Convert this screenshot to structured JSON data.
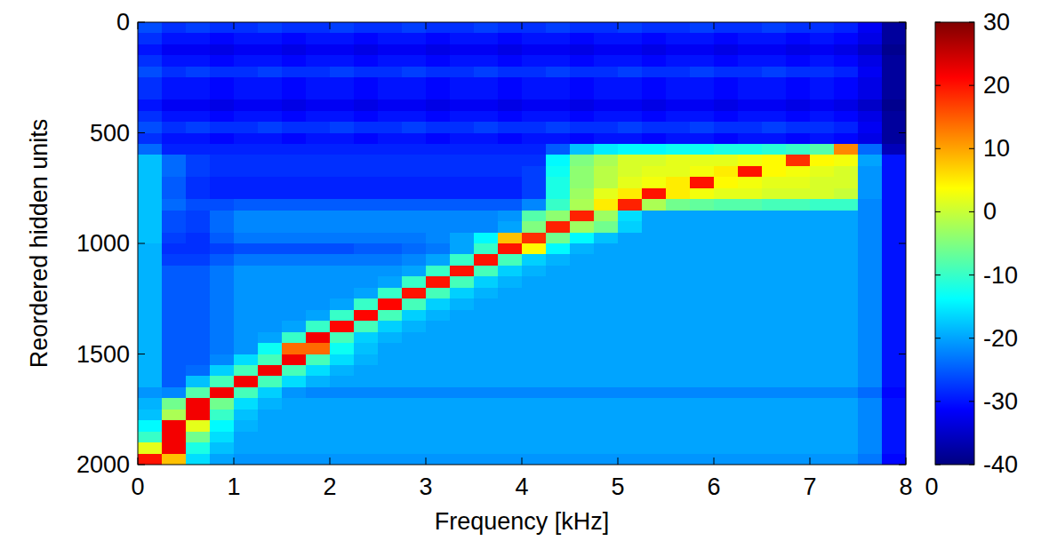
{
  "chart_data": {
    "type": "heatmap",
    "xlabel": "Frequency [kHz]",
    "ylabel": "Reordered hidden units",
    "xlim": [
      0,
      8
    ],
    "xticks": [
      0,
      1,
      2,
      3,
      4,
      5,
      6,
      7,
      8
    ],
    "ylim": [
      2000,
      0
    ],
    "yticks": [
      0,
      500,
      1000,
      1500,
      2000
    ],
    "xbins": [
      0,
      0.25,
      0.5,
      0.75,
      1,
      1.25,
      1.5,
      1.75,
      2,
      2.25,
      2.5,
      2.75,
      3,
      3.25,
      3.5,
      3.75,
      4,
      4.25,
      4.5,
      4.75,
      5,
      5.25,
      5.5,
      5.75,
      6,
      6.25,
      6.5,
      6.75,
      7,
      7.25,
      7.5,
      7.75,
      8
    ],
    "ybins": [
      0,
      50,
      100,
      150,
      200,
      250,
      300,
      350,
      400,
      450,
      500,
      550,
      600,
      650,
      700,
      750,
      800,
      850,
      900,
      950,
      1000,
      1050,
      1100,
      1150,
      1200,
      1250,
      1300,
      1350,
      1400,
      1450,
      1500,
      1550,
      1600,
      1650,
      1700,
      1750,
      1800,
      1850,
      1900,
      1950,
      2000
    ],
    "color_range": [
      -40,
      30
    ],
    "color_ticks": [
      -40,
      -30,
      -20,
      -10,
      0,
      10,
      20,
      30
    ],
    "colorbar_xticks": [
      0
    ],
    "cells": [
      [
        -26,
        -28,
        -27,
        -28,
        -28,
        -27,
        -28,
        -28,
        -27,
        -28,
        -28,
        -27,
        -28,
        -28,
        -27,
        -28,
        -28,
        -27,
        -28,
        -28,
        -27,
        -28,
        -28,
        -27,
        -28,
        -28,
        -27,
        -28,
        -28,
        -29,
        -32,
        -38
      ],
      [
        -28,
        -30,
        -30,
        -31,
        -30,
        -30,
        -31,
        -30,
        -30,
        -31,
        -30,
        -30,
        -31,
        -30,
        -30,
        -31,
        -30,
        -30,
        -31,
        -30,
        -30,
        -31,
        -30,
        -30,
        -31,
        -30,
        -30,
        -31,
        -30,
        -31,
        -33,
        -38
      ],
      [
        -30,
        -32,
        -32,
        -33,
        -32,
        -32,
        -33,
        -32,
        -32,
        -33,
        -32,
        -32,
        -33,
        -32,
        -32,
        -33,
        -32,
        -32,
        -33,
        -32,
        -32,
        -33,
        -32,
        -32,
        -33,
        -32,
        -32,
        -33,
        -32,
        -33,
        -35,
        -39
      ],
      [
        -28,
        -30,
        -30,
        -31,
        -30,
        -30,
        -31,
        -30,
        -30,
        -31,
        -30,
        -30,
        -31,
        -30,
        -30,
        -31,
        -30,
        -30,
        -31,
        -30,
        -30,
        -31,
        -30,
        -30,
        -31,
        -30,
        -30,
        -31,
        -30,
        -31,
        -33,
        -38
      ],
      [
        -26,
        -28,
        -27,
        -28,
        -28,
        -27,
        -28,
        -28,
        -27,
        -28,
        -28,
        -27,
        -28,
        -28,
        -27,
        -28,
        -28,
        -27,
        -28,
        -28,
        -27,
        -28,
        -28,
        -27,
        -28,
        -28,
        -27,
        -28,
        -28,
        -29,
        -32,
        -38
      ],
      [
        -28,
        -30,
        -30,
        -31,
        -30,
        -30,
        -31,
        -30,
        -30,
        -31,
        -30,
        -30,
        -31,
        -30,
        -30,
        -31,
        -30,
        -30,
        -31,
        -30,
        -30,
        -31,
        -30,
        -30,
        -31,
        -30,
        -30,
        -31,
        -30,
        -31,
        -33,
        -38
      ],
      [
        -28,
        -30,
        -30,
        -31,
        -30,
        -30,
        -31,
        -30,
        -30,
        -31,
        -30,
        -30,
        -31,
        -30,
        -30,
        -31,
        -30,
        -30,
        -31,
        -30,
        -30,
        -31,
        -30,
        -30,
        -31,
        -30,
        -30,
        -31,
        -30,
        -31,
        -33,
        -38
      ],
      [
        -30,
        -32,
        -32,
        -33,
        -32,
        -32,
        -33,
        -32,
        -32,
        -33,
        -32,
        -32,
        -33,
        -32,
        -32,
        -33,
        -32,
        -32,
        -33,
        -32,
        -32,
        -33,
        -32,
        -32,
        -33,
        -32,
        -32,
        -33,
        -32,
        -33,
        -35,
        -39
      ],
      [
        -28,
        -30,
        -30,
        -31,
        -30,
        -30,
        -31,
        -30,
        -30,
        -31,
        -30,
        -30,
        -31,
        -30,
        -30,
        -31,
        -30,
        -30,
        -31,
        -30,
        -30,
        -31,
        -30,
        -30,
        -31,
        -30,
        -30,
        -31,
        -30,
        -31,
        -33,
        -38
      ],
      [
        -26,
        -28,
        -27,
        -28,
        -28,
        -27,
        -28,
        -28,
        -27,
        -28,
        -28,
        -27,
        -28,
        -28,
        -27,
        -28,
        -28,
        -27,
        -28,
        -28,
        -27,
        -28,
        -28,
        -27,
        -28,
        -28,
        -27,
        -28,
        -28,
        -29,
        -32,
        -38
      ],
      [
        -28,
        -30,
        -30,
        -31,
        -30,
        -30,
        -31,
        -30,
        -30,
        -31,
        -30,
        -30,
        -31,
        -30,
        -30,
        -31,
        -30,
        -30,
        -31,
        -30,
        -30,
        -31,
        -30,
        -30,
        -31,
        -30,
        -30,
        -31,
        -30,
        -31,
        -33,
        -38
      ],
      [
        -24,
        -29,
        -29,
        -29,
        -29,
        -29,
        -29,
        -29,
        -29,
        -29,
        -29,
        -29,
        -29,
        -29,
        -29,
        -29,
        -29,
        -25,
        -18,
        -15,
        -14,
        -14,
        -13,
        -13,
        -12,
        -12,
        -11,
        -10,
        -8,
        12,
        -24,
        -36
      ],
      [
        -18,
        -24,
        -27,
        -28,
        -28,
        -28,
        -28,
        -28,
        -28,
        -28,
        -28,
        -28,
        -28,
        -28,
        -28,
        -28,
        -28,
        -14,
        -5,
        -2,
        1,
        1,
        2,
        2,
        2,
        3,
        4,
        18,
        4,
        3,
        -20,
        -30
      ],
      [
        -18,
        -24,
        -27,
        -28,
        -28,
        -28,
        -28,
        -28,
        -28,
        -28,
        -28,
        -28,
        -28,
        -28,
        -28,
        -28,
        -27,
        -13,
        -4,
        -1,
        1,
        2,
        2,
        3,
        5,
        20,
        4,
        3,
        2,
        1,
        -21,
        -30
      ],
      [
        -18,
        -25,
        -28,
        -29,
        -29,
        -29,
        -29,
        -29,
        -29,
        -29,
        -29,
        -29,
        -29,
        -29,
        -29,
        -29,
        -27,
        -12,
        -4,
        -1,
        2,
        3,
        5,
        20,
        4,
        3,
        2,
        2,
        1,
        1,
        -21,
        -30
      ],
      [
        -18,
        -25,
        -28,
        -29,
        -29,
        -29,
        -29,
        -29,
        -29,
        -29,
        -29,
        -29,
        -29,
        -29,
        -29,
        -29,
        -27,
        -12,
        -3,
        2,
        5,
        20,
        5,
        3,
        2,
        2,
        1,
        1,
        1,
        0,
        -21,
        -30
      ],
      [
        -18,
        -24,
        -26,
        -26,
        -25,
        -25,
        -25,
        -25,
        -25,
        -25,
        -25,
        -25,
        -25,
        -25,
        -25,
        -25,
        -22,
        -10,
        -2,
        5,
        19,
        -2,
        -6,
        -7,
        -8,
        -8,
        -9,
        -9,
        -10,
        -10,
        -22,
        -30
      ],
      [
        -18,
        -26,
        -27,
        -24,
        -22,
        -22,
        -22,
        -22,
        -22,
        -22,
        -22,
        -22,
        -22,
        -22,
        -22,
        -21,
        -8,
        -4,
        19,
        -3,
        -16,
        -20,
        -20,
        -20,
        -20,
        -20,
        -20,
        -20,
        -20,
        -20,
        -22,
        -30
      ],
      [
        -18,
        -26,
        -27,
        -24,
        -22,
        -22,
        -22,
        -22,
        -22,
        -22,
        -22,
        -22,
        -22,
        -22,
        -22,
        -20,
        -5,
        19,
        -3,
        -6,
        -17,
        -20,
        -20,
        -20,
        -20,
        -20,
        -20,
        -20,
        -20,
        -20,
        -22,
        -30
      ],
      [
        -18,
        -27,
        -28,
        -25,
        -23,
        -23,
        -23,
        -23,
        -23,
        -23,
        -23,
        -23,
        -22,
        -20,
        -14,
        8,
        18,
        -6,
        -14,
        -18,
        -20,
        -20,
        -20,
        -20,
        -20,
        -20,
        -20,
        -20,
        -20,
        -20,
        -22,
        -30
      ],
      [
        -19,
        -28,
        -28,
        -27,
        -26,
        -26,
        -26,
        -26,
        -26,
        -25,
        -25,
        -24,
        -23,
        -20,
        -10,
        20,
        4,
        -14,
        -19,
        -20,
        -20,
        -20,
        -20,
        -20,
        -20,
        -20,
        -20,
        -20,
        -20,
        -20,
        -22,
        -30
      ],
      [
        -19,
        -27,
        -27,
        -25,
        -23,
        -23,
        -23,
        -23,
        -23,
        -23,
        -23,
        -22,
        -20,
        -10,
        20,
        -9,
        -17,
        -19,
        -20,
        -20,
        -20,
        -20,
        -20,
        -20,
        -20,
        -20,
        -20,
        -20,
        -20,
        -20,
        -22,
        -30
      ],
      [
        -19,
        -25,
        -25,
        -23,
        -21,
        -21,
        -21,
        -21,
        -21,
        -21,
        -21,
        -20,
        -10,
        20,
        -9,
        -17,
        -19,
        -20,
        -20,
        -20,
        -20,
        -20,
        -20,
        -20,
        -20,
        -20,
        -20,
        -20,
        -20,
        -20,
        -22,
        -30
      ],
      [
        -19,
        -25,
        -25,
        -23,
        -21,
        -21,
        -21,
        -21,
        -21,
        -21,
        -20,
        -10,
        20,
        -9,
        -17,
        -19,
        -20,
        -20,
        -20,
        -20,
        -20,
        -20,
        -20,
        -20,
        -20,
        -20,
        -20,
        -20,
        -20,
        -20,
        -22,
        -30
      ],
      [
        -19,
        -25,
        -25,
        -23,
        -21,
        -21,
        -21,
        -21,
        -21,
        -20,
        -10,
        20,
        -9,
        -17,
        -19,
        -20,
        -20,
        -20,
        -20,
        -20,
        -20,
        -20,
        -20,
        -20,
        -20,
        -20,
        -20,
        -20,
        -20,
        -20,
        -22,
        -30
      ],
      [
        -19,
        -25,
        -25,
        -23,
        -21,
        -21,
        -21,
        -21,
        -20,
        -10,
        21,
        -9,
        -17,
        -19,
        -20,
        -20,
        -20,
        -20,
        -20,
        -20,
        -20,
        -20,
        -20,
        -20,
        -20,
        -20,
        -20,
        -20,
        -20,
        -20,
        -22,
        -30
      ],
      [
        -19,
        -25,
        -25,
        -23,
        -21,
        -21,
        -21,
        -20,
        -10,
        21,
        -9,
        -17,
        -19,
        -20,
        -20,
        -20,
        -20,
        -20,
        -20,
        -20,
        -20,
        -20,
        -20,
        -20,
        -20,
        -20,
        -20,
        -20,
        -20,
        -20,
        -22,
        -30
      ],
      [
        -19,
        -25,
        -25,
        -23,
        -21,
        -21,
        -20,
        -10,
        21,
        -9,
        -17,
        -19,
        -20,
        -20,
        -20,
        -20,
        -20,
        -20,
        -20,
        -20,
        -20,
        -20,
        -20,
        -20,
        -20,
        -20,
        -20,
        -20,
        -20,
        -20,
        -22,
        -30
      ],
      [
        -19,
        -25,
        -25,
        -23,
        -21,
        -20,
        -10,
        22,
        -9,
        -17,
        -19,
        -20,
        -20,
        -20,
        -20,
        -20,
        -20,
        -20,
        -20,
        -20,
        -20,
        -20,
        -20,
        -20,
        -20,
        -20,
        -20,
        -20,
        -20,
        -20,
        -22,
        -30
      ],
      [
        -19,
        -25,
        -25,
        -23,
        -21,
        -13,
        14,
        14,
        -13,
        -18,
        -20,
        -20,
        -20,
        -20,
        -20,
        -20,
        -20,
        -20,
        -20,
        -20,
        -20,
        -20,
        -20,
        -20,
        -20,
        -20,
        -20,
        -20,
        -20,
        -20,
        -22,
        -30
      ],
      [
        -19,
        -25,
        -25,
        -22,
        -16,
        -9,
        22,
        -9,
        -16,
        -19,
        -20,
        -20,
        -20,
        -20,
        -20,
        -20,
        -20,
        -20,
        -20,
        -20,
        -20,
        -20,
        -20,
        -20,
        -20,
        -20,
        -20,
        -20,
        -20,
        -20,
        -22,
        -30
      ],
      [
        -19,
        -25,
        -24,
        -17,
        -9,
        22,
        -9,
        -16,
        -19,
        -20,
        -20,
        -20,
        -20,
        -20,
        -20,
        -20,
        -20,
        -20,
        -20,
        -20,
        -20,
        -20,
        -20,
        -20,
        -20,
        -20,
        -20,
        -20,
        -20,
        -20,
        -22,
        -30
      ],
      [
        -19,
        -25,
        -18,
        -9,
        22,
        -9,
        -16,
        -19,
        -20,
        -20,
        -20,
        -20,
        -20,
        -20,
        -20,
        -20,
        -20,
        -20,
        -20,
        -20,
        -20,
        -20,
        -20,
        -20,
        -20,
        -20,
        -20,
        -20,
        -20,
        -20,
        -22,
        -30
      ],
      [
        -21,
        -22,
        -8,
        22,
        -9,
        -17,
        -21,
        -22,
        -22,
        -22,
        -22,
        -22,
        -22,
        -22,
        -22,
        -22,
        -22,
        -22,
        -22,
        -22,
        -22,
        -22,
        -22,
        -22,
        -22,
        -22,
        -22,
        -22,
        -22,
        -22,
        -24,
        -31
      ],
      [
        -19,
        -6,
        22,
        -6,
        -16,
        -19,
        -20,
        -20,
        -20,
        -20,
        -20,
        -20,
        -20,
        -20,
        -20,
        -20,
        -20,
        -20,
        -20,
        -20,
        -20,
        -20,
        -20,
        -20,
        -20,
        -20,
        -20,
        -20,
        -20,
        -20,
        -22,
        -30
      ],
      [
        -18,
        -2,
        22,
        -10,
        -18,
        -20,
        -20,
        -20,
        -20,
        -20,
        -20,
        -20,
        -20,
        -20,
        -20,
        -20,
        -20,
        -20,
        -20,
        -20,
        -20,
        -20,
        -20,
        -20,
        -20,
        -20,
        -20,
        -20,
        -20,
        -20,
        -22,
        -30
      ],
      [
        -14,
        22,
        2,
        -14,
        -19,
        -20,
        -20,
        -20,
        -20,
        -20,
        -20,
        -20,
        -20,
        -20,
        -20,
        -20,
        -20,
        -20,
        -20,
        -20,
        -20,
        -20,
        -20,
        -20,
        -20,
        -20,
        -20,
        -20,
        -20,
        -20,
        -22,
        -30
      ],
      [
        -10,
        22,
        -6,
        -16,
        -20,
        -20,
        -20,
        -20,
        -20,
        -20,
        -20,
        -20,
        -20,
        -20,
        -20,
        -20,
        -20,
        -20,
        -20,
        -20,
        -20,
        -20,
        -20,
        -20,
        -20,
        -20,
        -20,
        -20,
        -20,
        -20,
        -22,
        -30
      ],
      [
        2,
        22,
        -12,
        -18,
        -20,
        -20,
        -20,
        -20,
        -20,
        -20,
        -20,
        -20,
        -20,
        -20,
        -20,
        -20,
        -20,
        -20,
        -20,
        -20,
        -20,
        -20,
        -20,
        -20,
        -20,
        -20,
        -20,
        -20,
        -20,
        -20,
        -22,
        -30
      ],
      [
        20,
        8,
        -16,
        -20,
        -21,
        -21,
        -21,
        -21,
        -21,
        -21,
        -21,
        -21,
        -21,
        -21,
        -21,
        -21,
        -21,
        -21,
        -21,
        -21,
        -21,
        -21,
        -21,
        -21,
        -21,
        -21,
        -21,
        -21,
        -21,
        -21,
        -23,
        -31
      ]
    ]
  }
}
